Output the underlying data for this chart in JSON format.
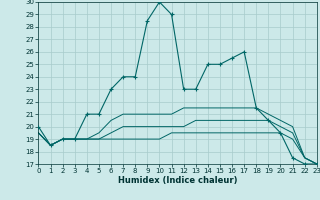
{
  "xlabel": "Humidex (Indice chaleur)",
  "ylabel": "",
  "background_color": "#cce9e9",
  "grid_color": "#b8d8d8",
  "line_color": "#006666",
  "xlim": [
    0,
    23
  ],
  "ylim": [
    17,
    30
  ],
  "yticks": [
    17,
    18,
    19,
    20,
    21,
    22,
    23,
    24,
    25,
    26,
    27,
    28,
    29,
    30
  ],
  "xticks": [
    0,
    1,
    2,
    3,
    4,
    5,
    6,
    7,
    8,
    9,
    10,
    11,
    12,
    13,
    14,
    15,
    16,
    17,
    18,
    19,
    20,
    21,
    22,
    23
  ],
  "curves": [
    {
      "x": [
        0,
        1,
        2,
        3,
        4,
        5,
        6,
        7,
        8,
        9,
        10,
        11,
        12,
        13,
        14,
        15,
        16,
        17,
        18,
        19,
        20,
        21,
        22,
        23
      ],
      "y": [
        19.5,
        18.5,
        19,
        19,
        19,
        19,
        19,
        19,
        19,
        19,
        19,
        19.5,
        19.5,
        19.5,
        19.5,
        19.5,
        19.5,
        19.5,
        19.5,
        19.5,
        19.5,
        19,
        17.5,
        17
      ],
      "marker": false
    },
    {
      "x": [
        0,
        1,
        2,
        3,
        4,
        5,
        6,
        7,
        8,
        9,
        10,
        11,
        12,
        13,
        14,
        15,
        16,
        17,
        18,
        19,
        20,
        21,
        22,
        23
      ],
      "y": [
        19.5,
        18.5,
        19,
        19,
        19,
        19,
        19.5,
        20,
        20,
        20,
        20,
        20,
        20,
        20.5,
        20.5,
        20.5,
        20.5,
        20.5,
        20.5,
        20.5,
        20,
        19.5,
        17.5,
        17
      ],
      "marker": false
    },
    {
      "x": [
        0,
        1,
        2,
        3,
        4,
        5,
        6,
        7,
        8,
        9,
        10,
        11,
        12,
        13,
        14,
        15,
        16,
        17,
        18,
        19,
        20,
        21,
        22,
        23
      ],
      "y": [
        19.5,
        18.5,
        19,
        19,
        19,
        19.5,
        20.5,
        21,
        21,
        21,
        21,
        21,
        21.5,
        21.5,
        21.5,
        21.5,
        21.5,
        21.5,
        21.5,
        21,
        20.5,
        20,
        17.5,
        17
      ],
      "marker": false
    },
    {
      "x": [
        0,
        1,
        2,
        3,
        4,
        5,
        6,
        7,
        8,
        9,
        10,
        11,
        12,
        13,
        14,
        15,
        16,
        17,
        18,
        19,
        20,
        21,
        22,
        23
      ],
      "y": [
        20,
        18.5,
        19,
        19,
        21,
        21,
        23,
        24,
        24,
        28.5,
        30,
        29,
        23,
        23,
        25,
        25,
        25.5,
        26,
        21.5,
        20.5,
        19.5,
        17.5,
        17,
        17
      ],
      "marker": true
    }
  ]
}
